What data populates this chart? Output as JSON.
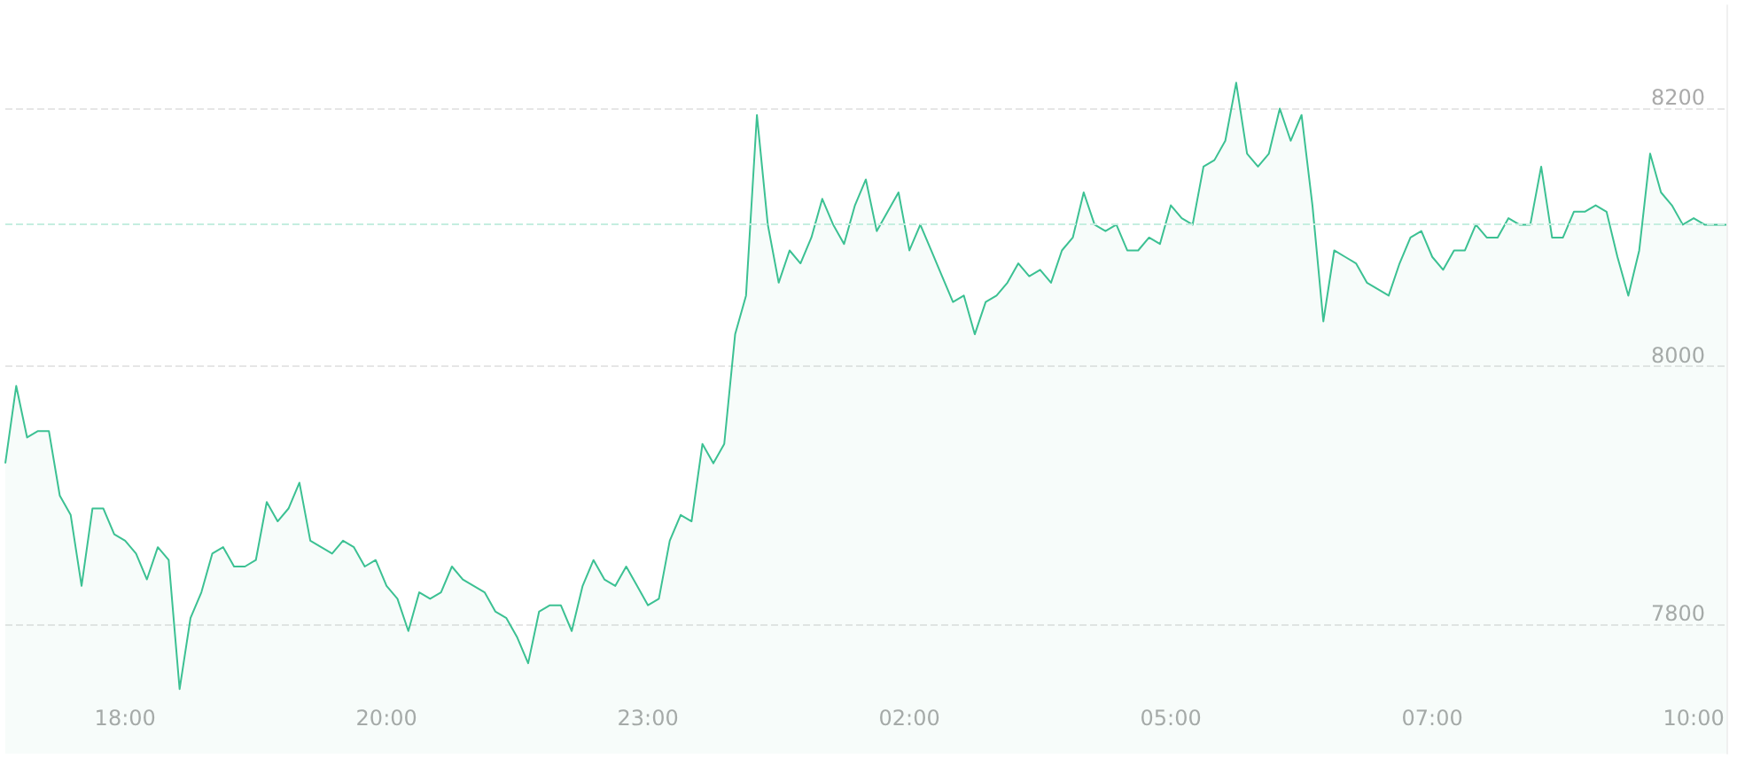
{
  "chart_data": {
    "type": "area",
    "categories": [
      null,
      null,
      null,
      null,
      null,
      null,
      null,
      null,
      null,
      null,
      null,
      "18:00",
      null,
      null,
      null,
      null,
      null,
      null,
      null,
      null,
      null,
      null,
      null,
      null,
      null,
      null,
      null,
      null,
      null,
      null,
      null,
      null,
      null,
      null,
      null,
      "20:00",
      null,
      null,
      null,
      null,
      null,
      null,
      null,
      null,
      null,
      null,
      null,
      null,
      null,
      null,
      null,
      null,
      null,
      null,
      null,
      null,
      null,
      null,
      null,
      "23:00",
      null,
      null,
      null,
      null,
      null,
      null,
      null,
      null,
      null,
      null,
      null,
      null,
      null,
      null,
      null,
      null,
      null,
      null,
      null,
      null,
      null,
      null,
      null,
      "02:00",
      null,
      null,
      null,
      null,
      null,
      null,
      null,
      null,
      null,
      null,
      null,
      null,
      null,
      null,
      null,
      null,
      null,
      null,
      null,
      null,
      null,
      null,
      null,
      "05:00",
      null,
      null,
      null,
      null,
      null,
      null,
      null,
      null,
      null,
      null,
      null,
      null,
      null,
      null,
      null,
      null,
      null,
      null,
      null,
      null,
      null,
      null,
      null,
      "07:00",
      null,
      null,
      null,
      null,
      null,
      null,
      null,
      null,
      null,
      null,
      null,
      null,
      null,
      null,
      null,
      null,
      null,
      null,
      null,
      null,
      null,
      null,
      null,
      "10:00",
      null,
      null,
      null
    ],
    "series": [
      {
        "color": "#3cc193",
        "values": [
          7925,
          7985,
          7945,
          7950,
          7950,
          7900,
          7885,
          7830,
          7890,
          7890,
          7870,
          7865,
          7855,
          7835,
          7860,
          7850,
          7750,
          7805,
          7825,
          7855,
          7860,
          7845,
          7845,
          7850,
          7895,
          7880,
          7890,
          7910,
          7865,
          7860,
          7855,
          7865,
          7860,
          7845,
          7850,
          7830,
          7820,
          7795,
          7825,
          7820,
          7825,
          7845,
          7835,
          7830,
          7825,
          7810,
          7805,
          7790,
          7770,
          7810,
          7815,
          7815,
          7795,
          7830,
          7850,
          7835,
          7830,
          7845,
          7830,
          7815,
          7820,
          7865,
          7885,
          7880,
          7940,
          7925,
          7940,
          8025,
          8055,
          8195,
          8110,
          8065,
          8090,
          8080,
          8100,
          8130,
          8110,
          8095,
          8125,
          8145,
          8105,
          8120,
          8135,
          8090,
          8110,
          8090,
          8070,
          8050,
          8055,
          8025,
          8050,
          8055,
          8065,
          8080,
          8070,
          8075,
          8065,
          8090,
          8100,
          8135,
          8110,
          8105,
          8110,
          8090,
          8090,
          8100,
          8095,
          8125,
          8115,
          8110,
          8155,
          8160,
          8175,
          8220,
          8165,
          8155,
          8165,
          8200,
          8175,
          8195,
          8125,
          8035,
          8090,
          8085,
          8080,
          8065,
          8060,
          8055,
          8080,
          8100,
          8105,
          8085,
          8075,
          8090,
          8090,
          8110,
          8100,
          8100,
          8115,
          8110,
          8110,
          8155,
          8100,
          8100,
          8120,
          8120,
          8125,
          8120,
          8085,
          8055,
          8090,
          8165,
          8135,
          8125,
          8110,
          8115,
          8110,
          8110,
          8110
        ]
      }
    ],
    "ylim": [
      7700,
      8280
    ],
    "yticks": [
      7800,
      8000,
      8200
    ],
    "grid": "y",
    "ref_lines": [
      {
        "axis": "y",
        "value": 8110,
        "color": "#c5eee0",
        "line_style": "dashed"
      }
    ]
  }
}
